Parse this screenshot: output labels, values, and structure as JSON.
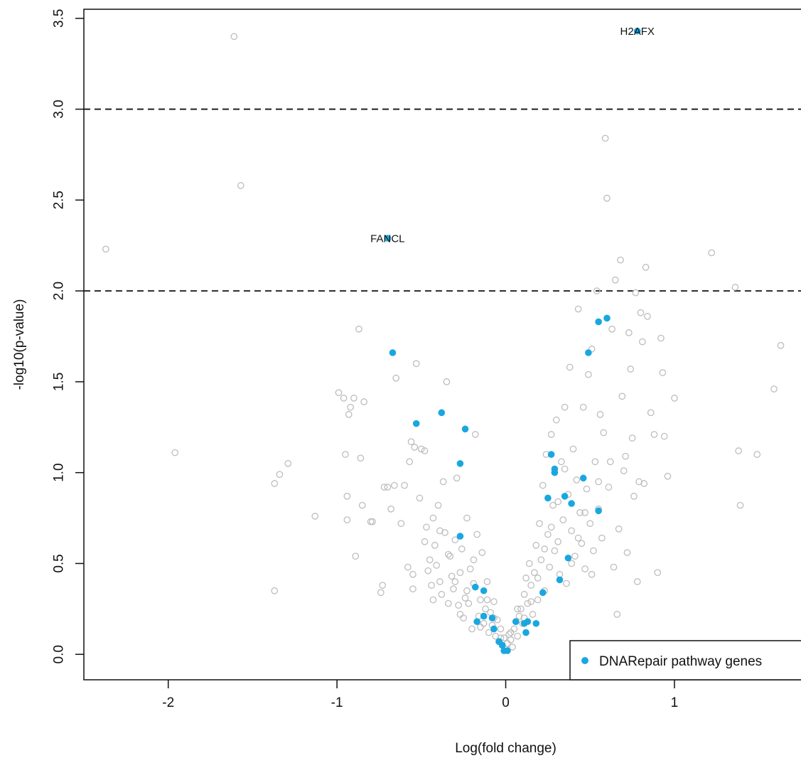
{
  "chart_data": {
    "type": "scatter",
    "xlabel": "Log(fold change)",
    "ylabel": "-log10(p-value)",
    "xlim": [
      -2.5,
      1.75
    ],
    "ylim": [
      -0.14,
      3.55
    ],
    "xticks": [
      "-2",
      "-1",
      "0",
      "1"
    ],
    "xtick_values": [
      -2,
      -1,
      0,
      1
    ],
    "yticks": [
      "0.0",
      "0.5",
      "1.0",
      "1.5",
      "2.0",
      "2.5",
      "3.0",
      "3.5"
    ],
    "ytick_values": [
      0.0,
      0.5,
      1.0,
      1.5,
      2.0,
      2.5,
      3.0,
      3.5
    ],
    "hlines": [
      2.0,
      3.0
    ],
    "hline_style": "dashed",
    "legend": {
      "position": "bottom-right",
      "label": "DNARepair pathway genes",
      "color": "#1aa7e0"
    },
    "colors": {
      "background_points": "#bdbdbd",
      "highlight_points": "#1aa7e0"
    },
    "annotations": [
      {
        "text": "H2AFX",
        "x": 0.78,
        "y": 3.43
      },
      {
        "text": "FANCL",
        "x": -0.7,
        "y": 2.29
      }
    ],
    "series": [
      {
        "name": "background genes",
        "marker": "open-circle",
        "points": [
          [
            -2.37,
            2.23
          ],
          [
            -1.96,
            1.11
          ],
          [
            -1.61,
            3.4
          ],
          [
            -1.57,
            2.58
          ],
          [
            -1.37,
            0.94
          ],
          [
            -1.37,
            0.35
          ],
          [
            -1.34,
            0.99
          ],
          [
            -1.29,
            1.05
          ],
          [
            -1.13,
            0.76
          ],
          [
            -0.99,
            1.44
          ],
          [
            -0.96,
            1.41
          ],
          [
            -0.95,
            1.1
          ],
          [
            -0.94,
            0.87
          ],
          [
            -0.94,
            0.74
          ],
          [
            -0.93,
            1.32
          ],
          [
            -0.92,
            1.36
          ],
          [
            -0.9,
            1.41
          ],
          [
            -0.89,
            0.54
          ],
          [
            -0.87,
            1.79
          ],
          [
            -0.86,
            1.08
          ],
          [
            -0.85,
            0.82
          ],
          [
            -0.84,
            1.39
          ],
          [
            -0.8,
            0.73
          ],
          [
            -0.79,
            0.73
          ],
          [
            -0.74,
            0.34
          ],
          [
            -0.73,
            0.38
          ],
          [
            -0.72,
            0.92
          ],
          [
            -0.7,
            0.92
          ],
          [
            -0.68,
            0.8
          ],
          [
            -0.66,
            0.93
          ],
          [
            -0.65,
            1.52
          ],
          [
            -0.62,
            0.72
          ],
          [
            -0.6,
            0.93
          ],
          [
            -0.58,
            0.48
          ],
          [
            -0.57,
            1.06
          ],
          [
            -0.56,
            1.17
          ],
          [
            -0.55,
            0.44
          ],
          [
            -0.54,
            1.14
          ],
          [
            -0.53,
            1.6
          ],
          [
            -0.51,
            0.86
          ],
          [
            -0.5,
            1.13
          ],
          [
            -0.48,
            1.12
          ],
          [
            -0.47,
            0.7
          ],
          [
            -0.46,
            0.46
          ],
          [
            -0.45,
            0.52
          ],
          [
            -0.44,
            0.38
          ],
          [
            -0.43,
            0.75
          ],
          [
            -0.42,
            0.6
          ],
          [
            -0.41,
            0.49
          ],
          [
            -0.4,
            0.82
          ],
          [
            -0.39,
            0.4
          ],
          [
            -0.38,
            0.33
          ],
          [
            -0.37,
            0.95
          ],
          [
            -0.36,
            0.67
          ],
          [
            -0.35,
            1.5
          ],
          [
            -0.34,
            0.28
          ],
          [
            -0.33,
            0.54
          ],
          [
            -0.32,
            0.43
          ],
          [
            -0.31,
            0.36
          ],
          [
            -0.3,
            0.63
          ],
          [
            -0.29,
            0.97
          ],
          [
            -0.28,
            0.27
          ],
          [
            -0.27,
            0.45
          ],
          [
            -0.26,
            0.58
          ],
          [
            -0.25,
            0.2
          ],
          [
            -0.24,
            0.31
          ],
          [
            -0.23,
            0.75
          ],
          [
            -0.22,
            0.28
          ],
          [
            -0.21,
            0.47
          ],
          [
            -0.2,
            0.14
          ],
          [
            -0.19,
            0.39
          ],
          [
            -0.18,
            1.21
          ],
          [
            -0.17,
            0.66
          ],
          [
            -0.16,
            0.21
          ],
          [
            -0.15,
            0.3
          ],
          [
            -0.14,
            0.56
          ],
          [
            -0.13,
            0.17
          ],
          [
            -0.12,
            0.25
          ],
          [
            -0.11,
            0.4
          ],
          [
            -0.1,
            0.12
          ],
          [
            -0.09,
            0.23
          ],
          [
            -0.08,
            0.16
          ],
          [
            -0.07,
            0.29
          ],
          [
            -0.06,
            0.1
          ],
          [
            -0.05,
            0.19
          ],
          [
            -0.04,
            0.07
          ],
          [
            -0.03,
            0.14
          ],
          [
            -0.02,
            0.05
          ],
          [
            -0.01,
            0.09
          ],
          [
            0.0,
            0.03
          ],
          [
            0.01,
            0.06
          ],
          [
            0.02,
            0.11
          ],
          [
            0.03,
            0.08
          ],
          [
            0.04,
            0.04
          ],
          [
            0.05,
            0.14
          ],
          [
            0.06,
            0.18
          ],
          [
            0.07,
            0.1
          ],
          [
            0.08,
            0.21
          ],
          [
            0.09,
            0.25
          ],
          [
            0.1,
            0.17
          ],
          [
            0.11,
            0.33
          ],
          [
            0.12,
            0.42
          ],
          [
            0.13,
            0.28
          ],
          [
            0.14,
            0.5
          ],
          [
            0.15,
            0.38
          ],
          [
            0.16,
            0.22
          ],
          [
            0.17,
            0.45
          ],
          [
            0.18,
            0.6
          ],
          [
            0.19,
            0.3
          ],
          [
            0.2,
            0.72
          ],
          [
            0.21,
            0.52
          ],
          [
            0.22,
            0.93
          ],
          [
            0.23,
            0.35
          ],
          [
            0.24,
            1.1
          ],
          [
            0.25,
            0.66
          ],
          [
            0.26,
            0.48
          ],
          [
            0.27,
            1.21
          ],
          [
            0.28,
            0.82
          ],
          [
            0.29,
            0.57
          ],
          [
            0.3,
            1.29
          ],
          [
            0.31,
            0.62
          ],
          [
            0.32,
            0.44
          ],
          [
            0.33,
            1.06
          ],
          [
            0.34,
            0.74
          ],
          [
            0.35,
            1.36
          ],
          [
            0.36,
            0.39
          ],
          [
            0.37,
            0.88
          ],
          [
            0.38,
            1.58
          ],
          [
            0.39,
            0.68
          ],
          [
            0.4,
            1.13
          ],
          [
            0.41,
            0.54
          ],
          [
            0.42,
            0.96
          ],
          [
            0.43,
            1.9
          ],
          [
            0.44,
            0.78
          ],
          [
            0.45,
            0.61
          ],
          [
            0.46,
            1.36
          ],
          [
            0.47,
            0.47
          ],
          [
            0.48,
            0.91
          ],
          [
            0.49,
            1.54
          ],
          [
            0.5,
            0.72
          ],
          [
            0.51,
            1.68
          ],
          [
            0.52,
            0.57
          ],
          [
            0.53,
            1.06
          ],
          [
            0.54,
            2.0
          ],
          [
            0.55,
            0.8
          ],
          [
            0.56,
            1.32
          ],
          [
            0.57,
            0.64
          ],
          [
            0.58,
            1.22
          ],
          [
            0.59,
            2.84
          ],
          [
            0.6,
            2.51
          ],
          [
            0.61,
            0.92
          ],
          [
            0.62,
            1.06
          ],
          [
            0.63,
            1.79
          ],
          [
            0.64,
            0.48
          ],
          [
            0.65,
            2.06
          ],
          [
            0.66,
            0.22
          ],
          [
            0.67,
            0.69
          ],
          [
            0.68,
            2.17
          ],
          [
            0.69,
            1.42
          ],
          [
            0.7,
            1.01
          ],
          [
            0.71,
            1.09
          ],
          [
            0.72,
            0.56
          ],
          [
            0.73,
            1.77
          ],
          [
            0.74,
            1.57
          ],
          [
            0.75,
            1.19
          ],
          [
            0.76,
            0.87
          ],
          [
            0.77,
            1.99
          ],
          [
            0.78,
            0.4
          ],
          [
            0.79,
            0.95
          ],
          [
            0.8,
            1.88
          ],
          [
            0.81,
            1.72
          ],
          [
            0.82,
            0.94
          ],
          [
            0.83,
            2.13
          ],
          [
            0.84,
            1.86
          ],
          [
            0.86,
            1.33
          ],
          [
            0.88,
            1.21
          ],
          [
            0.9,
            0.45
          ],
          [
            0.92,
            1.74
          ],
          [
            0.93,
            1.55
          ],
          [
            0.94,
            1.2
          ],
          [
            0.96,
            0.98
          ],
          [
            1.0,
            1.41
          ],
          [
            1.22,
            2.21
          ],
          [
            1.36,
            2.02
          ],
          [
            1.38,
            1.12
          ],
          [
            1.39,
            0.82
          ],
          [
            1.49,
            1.1
          ],
          [
            1.59,
            1.46
          ],
          [
            1.63,
            1.7
          ],
          [
            -0.55,
            0.36
          ],
          [
            -0.48,
            0.62
          ],
          [
            -0.43,
            0.3
          ],
          [
            -0.39,
            0.68
          ],
          [
            -0.34,
            0.55
          ],
          [
            -0.3,
            0.4
          ],
          [
            -0.27,
            0.22
          ],
          [
            -0.23,
            0.35
          ],
          [
            -0.19,
            0.52
          ],
          [
            -0.15,
            0.15
          ],
          [
            -0.11,
            0.3
          ],
          [
            -0.07,
            0.2
          ],
          [
            -0.03,
            0.09
          ],
          [
            0.03,
            0.12
          ],
          [
            0.07,
            0.25
          ],
          [
            0.11,
            0.2
          ],
          [
            0.15,
            0.29
          ],
          [
            0.19,
            0.42
          ],
          [
            0.23,
            0.58
          ],
          [
            0.27,
            0.7
          ],
          [
            0.31,
            0.84
          ],
          [
            0.35,
            1.02
          ],
          [
            0.39,
            0.5
          ],
          [
            0.43,
            0.64
          ],
          [
            0.47,
            0.78
          ],
          [
            0.51,
            0.44
          ],
          [
            0.55,
            0.95
          ]
        ]
      },
      {
        "name": "DNARepair pathway genes",
        "marker": "filled-circle",
        "points": [
          [
            -0.67,
            1.66
          ],
          [
            -0.53,
            1.27
          ],
          [
            -0.38,
            1.33
          ],
          [
            -0.24,
            1.24
          ],
          [
            -0.27,
            1.05
          ],
          [
            -0.27,
            0.65
          ],
          [
            -0.18,
            0.37
          ],
          [
            -0.13,
            0.35
          ],
          [
            -0.17,
            0.18
          ],
          [
            -0.13,
            0.21
          ],
          [
            -0.08,
            0.2
          ],
          [
            -0.07,
            0.14
          ],
          [
            -0.04,
            0.07
          ],
          [
            -0.02,
            0.05
          ],
          [
            -0.01,
            0.02
          ],
          [
            0.01,
            0.02
          ],
          [
            0.06,
            0.18
          ],
          [
            0.11,
            0.17
          ],
          [
            0.13,
            0.18
          ],
          [
            0.12,
            0.12
          ],
          [
            0.18,
            0.17
          ],
          [
            0.22,
            0.34
          ],
          [
            0.25,
            0.86
          ],
          [
            0.27,
            1.1
          ],
          [
            0.29,
            1.02
          ],
          [
            0.29,
            1.0
          ],
          [
            0.32,
            0.41
          ],
          [
            0.35,
            0.87
          ],
          [
            0.37,
            0.53
          ],
          [
            0.39,
            0.83
          ],
          [
            0.46,
            0.97
          ],
          [
            0.49,
            1.66
          ],
          [
            0.55,
            1.83
          ],
          [
            0.55,
            0.79
          ],
          [
            0.6,
            1.85
          ],
          [
            -0.7,
            2.29
          ],
          [
            0.78,
            3.43
          ]
        ]
      }
    ]
  }
}
